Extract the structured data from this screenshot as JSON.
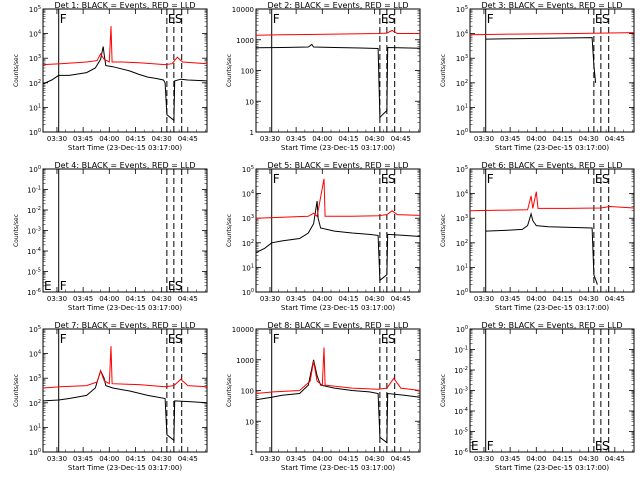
{
  "figure": {
    "common_ylabel": "Counts/sec",
    "common_xlabel": "Start Time (23-Dec-15 03:17:00)",
    "x_tick_labels": [
      "03:30",
      "03:45",
      "04:00",
      "04:15",
      "04:30",
      "04:45"
    ],
    "marker_labels": {
      "F": "F",
      "E": "E",
      "S": "S"
    }
  },
  "chart_data": [
    {
      "type": "line",
      "title": "Det 1: BLACK = Events, RED = LLD",
      "yscale": "log",
      "ylim": [
        1,
        100000
      ],
      "ytick_labels": [
        "10^0",
        "10^1",
        "10^2",
        "10^3",
        "10^4",
        "10^5"
      ],
      "xlim_minutes": [
        5,
        99
      ],
      "vlines": {
        "F": 14,
        "E": 76,
        "S": 80
      },
      "vline_labels_at": "top",
      "series": [
        {
          "color": "#000000",
          "points": [
            [
              5,
              90
            ],
            [
              10,
              130
            ],
            [
              14,
              200
            ],
            [
              20,
              200
            ],
            [
              30,
              260
            ],
            [
              35,
              400
            ],
            [
              38,
              900
            ],
            [
              39.5,
              3000
            ],
            [
              40,
              1500
            ],
            [
              41,
              500
            ],
            [
              45,
              450
            ],
            [
              55,
              300
            ],
            [
              60,
              220
            ],
            [
              65,
              170
            ],
            [
              70,
              150
            ],
            [
              74,
              130
            ],
            [
              75,
              100
            ],
            [
              76,
              5
            ],
            [
              80,
              3
            ],
            [
              80.5,
              120
            ],
            [
              84,
              140
            ],
            [
              88,
              130
            ],
            [
              99,
              120
            ]
          ]
        },
        {
          "color": "#ff0000",
          "points": [
            [
              5,
              550
            ],
            [
              15,
              600
            ],
            [
              30,
              700
            ],
            [
              36,
              800
            ],
            [
              38,
              1500
            ],
            [
              40,
              900
            ],
            [
              43,
              700
            ],
            [
              44,
              20000
            ],
            [
              44.6,
              700
            ],
            [
              50,
              700
            ],
            [
              60,
              650
            ],
            [
              75,
              550
            ],
            [
              79,
              600
            ],
            [
              82,
              1100
            ],
            [
              85,
              700
            ],
            [
              99,
              600
            ]
          ]
        }
      ]
    },
    {
      "type": "line",
      "title": "Det 2: BLACK = Events, RED = LLD",
      "yscale": "log",
      "ylim": [
        1,
        10000
      ],
      "ytick_labels": [
        "1",
        "10",
        "100",
        "1000",
        "10000"
      ],
      "xlim_minutes": [
        5,
        99
      ],
      "vlines": {
        "F": 14,
        "E": 76,
        "S": 80
      },
      "vline_labels_at": "top",
      "series": [
        {
          "color": "#000000",
          "points": [
            [
              5,
              550
            ],
            [
              20,
              560
            ],
            [
              35,
              580
            ],
            [
              37,
              700
            ],
            [
              38,
              580
            ],
            [
              50,
              560
            ],
            [
              65,
              540
            ],
            [
              75,
              520
            ],
            [
              76,
              3
            ],
            [
              80,
              5
            ],
            [
              80.5,
              560
            ],
            [
              99,
              530
            ]
          ]
        },
        {
          "color": "#ff0000",
          "points": [
            [
              5,
              1400
            ],
            [
              20,
              1450
            ],
            [
              35,
              1480
            ],
            [
              45,
              1500
            ],
            [
              60,
              1550
            ],
            [
              75,
              1600
            ],
            [
              80,
              1650
            ],
            [
              83,
              2000
            ],
            [
              86,
              1600
            ],
            [
              99,
              1600
            ]
          ]
        }
      ]
    },
    {
      "type": "line",
      "title": "Det 3: BLACK = Events, RED = LLD",
      "yscale": "log",
      "ylim": [
        1,
        100000
      ],
      "ytick_labels": [
        "10^0",
        "10^1",
        "10^2",
        "10^3",
        "10^4",
        "10^5"
      ],
      "xlim_minutes": [
        5,
        99
      ],
      "vlines": {
        "F": 14,
        "E": 76,
        "S": 80
      },
      "vline_labels_at": "top",
      "series": [
        {
          "color": "#000000",
          "points": [
            [
              14,
              6000
            ],
            [
              30,
              6200
            ],
            [
              50,
              6500
            ],
            [
              70,
              6800
            ],
            [
              75,
              6900
            ],
            [
              76,
              500
            ],
            [
              77,
              100
            ]
          ]
        },
        {
          "color": "#ff0000",
          "points": [
            [
              5,
              9000
            ],
            [
              30,
              9500
            ],
            [
              60,
              10000
            ],
            [
              80,
              10500
            ],
            [
              99,
              11000
            ]
          ]
        }
      ]
    },
    {
      "type": "line",
      "title": "Det 4: BLACK = Events, RED = LLD",
      "yscale": "log",
      "ylim": [
        1e-06,
        1
      ],
      "ytick_labels": [
        "10^-6",
        "10^-5",
        "10^-4",
        "10^-3",
        "10^-2",
        "10^-1",
        "10^0"
      ],
      "xlim_minutes": [
        5,
        99
      ],
      "vlines": {
        "F": 14,
        "E": 76,
        "S": 80
      },
      "vline_labels_at": "bottom",
      "series": []
    },
    {
      "type": "line",
      "title": "Det 5: BLACK = Events, RED = LLD",
      "yscale": "log",
      "ylim": [
        1,
        100000
      ],
      "ytick_labels": [
        "10^0",
        "10^1",
        "10^2",
        "10^3",
        "10^4",
        "10^5"
      ],
      "xlim_minutes": [
        5,
        99
      ],
      "vlines": {
        "F": 14,
        "E": 76,
        "S": 80
      },
      "vline_labels_at": "top",
      "series": [
        {
          "color": "#000000",
          "points": [
            [
              5,
              40
            ],
            [
              10,
              60
            ],
            [
              14,
              100
            ],
            [
              20,
              120
            ],
            [
              30,
              150
            ],
            [
              35,
              250
            ],
            [
              38,
              600
            ],
            [
              40,
              5000
            ],
            [
              40.6,
              1000
            ],
            [
              42,
              400
            ],
            [
              50,
              300
            ],
            [
              60,
              250
            ],
            [
              70,
              220
            ],
            [
              75,
              200
            ],
            [
              76,
              3
            ],
            [
              80,
              5
            ],
            [
              80.5,
              220
            ],
            [
              90,
              200
            ],
            [
              99,
              180
            ]
          ]
        },
        {
          "color": "#ff0000",
          "points": [
            [
              5,
              1000
            ],
            [
              20,
              1100
            ],
            [
              35,
              1200
            ],
            [
              38,
              1600
            ],
            [
              40,
              1200
            ],
            [
              44,
              40000
            ],
            [
              44.6,
              1200
            ],
            [
              60,
              1200
            ],
            [
              75,
              1250
            ],
            [
              80,
              1400
            ],
            [
              83,
              2000
            ],
            [
              86,
              1400
            ],
            [
              99,
              1300
            ]
          ]
        }
      ]
    },
    {
      "type": "line",
      "title": "Det 6: BLACK = Events, RED = LLD",
      "yscale": "log",
      "ylim": [
        1,
        100000
      ],
      "ytick_labels": [
        "10^0",
        "10^1",
        "10^2",
        "10^3",
        "10^4",
        "10^5"
      ],
      "xlim_minutes": [
        5,
        99
      ],
      "vlines": {
        "F": 14,
        "E": 76,
        "S": 80
      },
      "vline_labels_at": "top",
      "series": [
        {
          "color": "#000000",
          "points": [
            [
              14,
              300
            ],
            [
              25,
              320
            ],
            [
              35,
              350
            ],
            [
              38,
              500
            ],
            [
              40,
              1500
            ],
            [
              41,
              800
            ],
            [
              43,
              500
            ],
            [
              50,
              450
            ],
            [
              65,
              420
            ],
            [
              75,
              400
            ],
            [
              76,
              5
            ],
            [
              78,
              2
            ]
          ]
        },
        {
          "color": "#ff0000",
          "points": [
            [
              5,
              2000
            ],
            [
              20,
              2100
            ],
            [
              38,
              2200
            ],
            [
              40,
              8000
            ],
            [
              41,
              2500
            ],
            [
              43,
              12000
            ],
            [
              44,
              2500
            ],
            [
              60,
              2500
            ],
            [
              80,
              2600
            ],
            [
              85,
              3000
            ],
            [
              99,
              2600
            ]
          ]
        }
      ]
    },
    {
      "type": "line",
      "title": "Det 7: BLACK = Events, RED = LLD",
      "yscale": "log",
      "ylim": [
        1,
        100000
      ],
      "ytick_labels": [
        "10^0",
        "10^1",
        "10^2",
        "10^3",
        "10^4",
        "10^5"
      ],
      "xlim_minutes": [
        5,
        99
      ],
      "vlines": {
        "F": 14,
        "E": 76,
        "S": 80
      },
      "vline_labels_at": "top",
      "series": [
        {
          "color": "#000000",
          "points": [
            [
              5,
              120
            ],
            [
              14,
              130
            ],
            [
              20,
              150
            ],
            [
              30,
              200
            ],
            [
              35,
              400
            ],
            [
              38,
              2000
            ],
            [
              40,
              1000
            ],
            [
              41,
              500
            ],
            [
              45,
              400
            ],
            [
              55,
              300
            ],
            [
              65,
              200
            ],
            [
              75,
              150
            ],
            [
              76,
              5
            ],
            [
              80,
              3
            ],
            [
              80.5,
              120
            ],
            [
              90,
              110
            ],
            [
              99,
              100
            ]
          ]
        },
        {
          "color": "#ff0000",
          "points": [
            [
              5,
              400
            ],
            [
              15,
              450
            ],
            [
              30,
              500
            ],
            [
              36,
              700
            ],
            [
              38,
              2000
            ],
            [
              40,
              800
            ],
            [
              43,
              600
            ],
            [
              44,
              20000
            ],
            [
              44.6,
              600
            ],
            [
              60,
              550
            ],
            [
              75,
              450
            ],
            [
              80,
              500
            ],
            [
              84,
              900
            ],
            [
              88,
              500
            ],
            [
              99,
              450
            ]
          ]
        }
      ]
    },
    {
      "type": "line",
      "title": "Det 8: BLACK = Events, RED = LLD",
      "yscale": "log",
      "ylim": [
        1,
        10000
      ],
      "ytick_labels": [
        "1",
        "10",
        "100",
        "1000",
        "10000"
      ],
      "xlim_minutes": [
        5,
        99
      ],
      "vlines": {
        "F": 14,
        "E": 76,
        "S": 80
      },
      "vline_labels_at": "top",
      "series": [
        {
          "color": "#000000",
          "points": [
            [
              5,
              50
            ],
            [
              14,
              60
            ],
            [
              20,
              70
            ],
            [
              30,
              80
            ],
            [
              35,
              150
            ],
            [
              38,
              1000
            ],
            [
              40,
              300
            ],
            [
              42,
              150
            ],
            [
              50,
              120
            ],
            [
              60,
              100
            ],
            [
              70,
              90
            ],
            [
              75,
              80
            ],
            [
              76,
              3
            ],
            [
              80,
              2
            ],
            [
              80.5,
              80
            ],
            [
              90,
              70
            ],
            [
              99,
              60
            ]
          ]
        },
        {
          "color": "#ff0000",
          "points": [
            [
              5,
              80
            ],
            [
              15,
              90
            ],
            [
              30,
              100
            ],
            [
              36,
              200
            ],
            [
              38,
              900
            ],
            [
              40,
              200
            ],
            [
              43,
              150
            ],
            [
              44,
              2500
            ],
            [
              44.6,
              150
            ],
            [
              60,
              120
            ],
            [
              75,
              110
            ],
            [
              80,
              120
            ],
            [
              84,
              250
            ],
            [
              88,
              120
            ],
            [
              99,
              100
            ]
          ]
        }
      ]
    },
    {
      "type": "line",
      "title": "Det 9: BLACK = Events, RED = LLD",
      "yscale": "log",
      "ylim": [
        1e-06,
        1
      ],
      "ytick_labels": [
        "10^-6",
        "10^-5",
        "10^-4",
        "10^-3",
        "10^-2",
        "10^-1",
        "10^0"
      ],
      "xlim_minutes": [
        5,
        99
      ],
      "vlines": {
        "F": 14,
        "E": 76,
        "S": 80
      },
      "vline_labels_at": "bottom",
      "series": []
    }
  ]
}
